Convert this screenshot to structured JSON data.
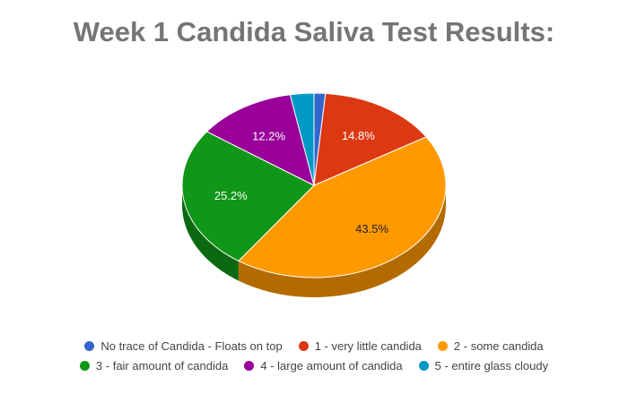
{
  "chart_data": {
    "type": "pie",
    "title": "Week 1 Candida Saliva Test Results:",
    "categories": [
      "No trace of Candida - Floats on top",
      "1 - very little candida",
      "2 - some candida",
      "3 - fair amount of candida",
      "4 - large amount of candida",
      "5 - entire glass cloudy"
    ],
    "values": [
      1.4,
      14.8,
      43.5,
      25.2,
      12.2,
      2.9
    ],
    "value_labels": [
      "",
      "14.8%",
      "43.5%",
      "25.2%",
      "12.2%",
      ""
    ],
    "colors": [
      "#3366cc",
      "#dc3912",
      "#ff9900",
      "#109618",
      "#990099",
      "#0099c6"
    ],
    "shade_colors": [
      "#2647a0",
      "#9a280d",
      "#b36b00",
      "#0b6911",
      "#6b006b",
      "#006b8b"
    ],
    "label_colors": [
      "#ffffff",
      "#ffffff",
      "#222222",
      "#ffffff",
      "#ffffff",
      "#ffffff"
    ],
    "style": "3d",
    "legend": "bottom"
  }
}
